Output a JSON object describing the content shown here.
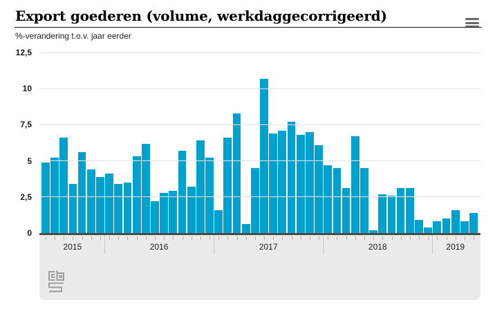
{
  "header": {
    "title": "Export goederen (volume, werkdaggecorrigeerd)",
    "subtitle": "%-verandering t.o.v. jaar eerder"
  },
  "colors": {
    "bar": "#00a1cd",
    "baseline": "#4a4a4a",
    "gridline": "#e3e3e3",
    "panel": "#ebebeb",
    "axis_tick": "#b0b0b0",
    "year_separator": "#c8c8c8",
    "menu_icon": "#686868",
    "logo": "#9d9d9d"
  },
  "chart_data": {
    "type": "bar",
    "title": "Export goederen (volume, werkdaggecorrigeerd)",
    "subtitle": "%-verandering t.o.v. jaar eerder",
    "unit": "%",
    "ylim": [
      0,
      12.5
    ],
    "grid": true,
    "yticks": [
      {
        "label": "12,5",
        "value": 12.5
      },
      {
        "label": "10",
        "value": 10
      },
      {
        "label": "7,5",
        "value": 7.5
      },
      {
        "label": "5",
        "value": 5
      },
      {
        "label": "2,5",
        "value": 2.5
      },
      {
        "label": "0",
        "value": 0
      }
    ],
    "year_groups": [
      {
        "label": "2015",
        "count": 7
      },
      {
        "label": "2016",
        "count": 12
      },
      {
        "label": "2017",
        "count": 12
      },
      {
        "label": "2018",
        "count": 12
      },
      {
        "label": "2019",
        "count": 5
      }
    ],
    "x_months": [
      "jun 2015",
      "jul 2015",
      "aug 2015",
      "sep 2015",
      "okt 2015",
      "nov 2015",
      "dec 2015",
      "jan 2016",
      "feb 2016",
      "mrt 2016",
      "apr 2016",
      "mei 2016",
      "jun 2016",
      "jul 2016",
      "aug 2016",
      "sep 2016",
      "okt 2016",
      "nov 2016",
      "dec 2016",
      "jan 2017",
      "feb 2017",
      "mrt 2017",
      "apr 2017",
      "mei 2017",
      "jun 2017",
      "jul 2017",
      "aug 2017",
      "sep 2017",
      "okt 2017",
      "nov 2017",
      "dec 2017",
      "jan 2018",
      "feb 2018",
      "mrt 2018",
      "apr 2018",
      "mei 2018",
      "jun 2018",
      "jul 2018",
      "aug 2018",
      "sep 2018",
      "okt 2018",
      "nov 2018",
      "dec 2018",
      "jan 2019",
      "feb 2019",
      "mrt 2019",
      "apr 2019",
      "mei 2019"
    ],
    "values": [
      4.9,
      5.2,
      6.6,
      3.4,
      5.6,
      4.4,
      3.9,
      4.1,
      3.4,
      3.5,
      5.3,
      6.2,
      2.2,
      2.8,
      2.9,
      5.7,
      3.2,
      6.4,
      5.2,
      1.6,
      6.6,
      8.3,
      0.6,
      4.5,
      10.7,
      6.9,
      7.1,
      7.7,
      6.8,
      7.0,
      6.1,
      4.7,
      4.5,
      3.1,
      6.7,
      4.5,
      0.2,
      2.7,
      2.6,
      3.1,
      3.1,
      0.9,
      0.4,
      0.8,
      1.0,
      1.6,
      0.8,
      1.4
    ]
  }
}
